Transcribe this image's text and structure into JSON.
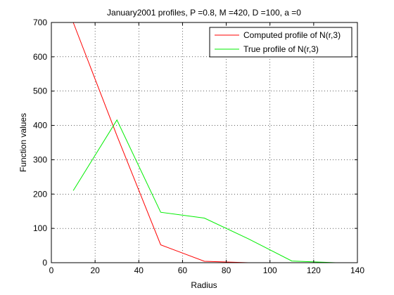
{
  "chart_data": {
    "type": "line",
    "title": "January2001 profiles, P =0.8, M =420, D =100, a =0",
    "xlabel": "Radius",
    "ylabel": "Function values",
    "xlim": [
      0,
      140
    ],
    "ylim": [
      0,
      700
    ],
    "xticks": [
      0,
      20,
      40,
      60,
      80,
      100,
      120,
      140
    ],
    "yticks": [
      0,
      100,
      200,
      300,
      400,
      500,
      600,
      700
    ],
    "grid": true,
    "legend_position": "top-right",
    "series": [
      {
        "name": "Computed profile of N(r,3)",
        "color": "#ff0000",
        "x": [
          10,
          30,
          50,
          70,
          90,
          110,
          130
        ],
        "y": [
          700,
          370,
          52,
          4,
          0,
          0,
          0
        ]
      },
      {
        "name": "True profile of N(r,3)",
        "color": "#00ee00",
        "x": [
          10,
          30,
          50,
          70,
          90,
          110,
          130
        ],
        "y": [
          210,
          416,
          147,
          130,
          70,
          5,
          0
        ]
      }
    ]
  }
}
